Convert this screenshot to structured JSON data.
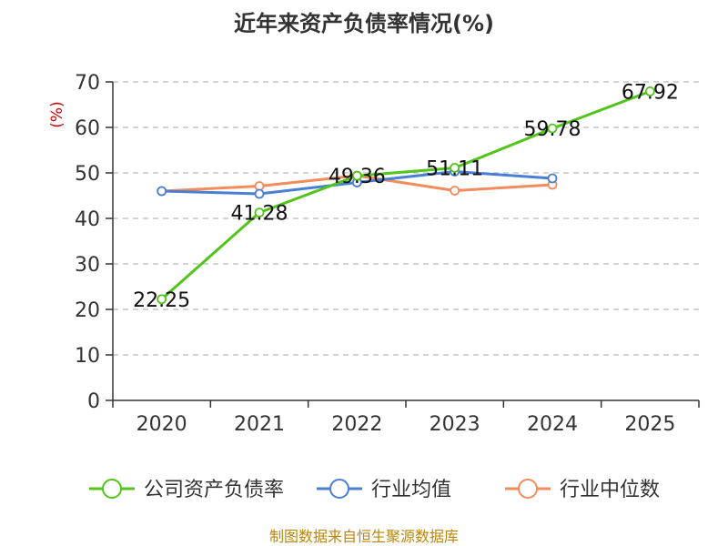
{
  "chart_data": {
    "type": "line",
    "title": "近年来资产负债率情况(%)",
    "ylabel": "(%)",
    "x": [
      "2020",
      "2021",
      "2022",
      "2023",
      "2024",
      "2025"
    ],
    "ylim": [
      0,
      70
    ],
    "yticks": [
      0,
      10,
      20,
      30,
      40,
      50,
      60,
      70
    ],
    "grid": true,
    "legend_position": "bottom",
    "series": [
      {
        "name": "公司资产负债率",
        "color": "#52c41a",
        "values": [
          22.25,
          41.28,
          49.36,
          51.11,
          59.78,
          67.92
        ],
        "labels": [
          "22.25",
          "41.28",
          "49.36",
          "51.11",
          "59.78",
          "67.92"
        ]
      },
      {
        "name": "行业均值",
        "color": "#4a7fd4",
        "values": [
          46.0,
          45.4,
          47.9,
          50.3,
          48.8,
          null
        ]
      },
      {
        "name": "行业中位数",
        "color": "#f28c5b",
        "values": [
          46.0,
          47.1,
          49.4,
          46.1,
          47.4,
          null
        ]
      }
    ]
  },
  "source_text": "制图数据来自恒生聚源数据库"
}
